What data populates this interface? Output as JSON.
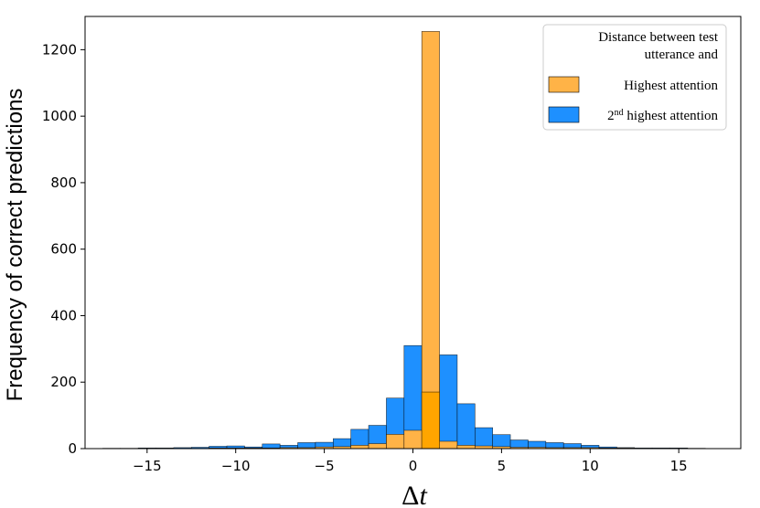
{
  "chart_data": {
    "type": "bar",
    "xlabel": "Δt",
    "ylabel": "Frequency of correct predictions",
    "xlim": [
      -18.5,
      18.5
    ],
    "ylim": [
      0,
      1300
    ],
    "xticks": [
      -15,
      -10,
      -5,
      0,
      5,
      10,
      15
    ],
    "yticks": [
      0,
      200,
      400,
      600,
      800,
      1000,
      1200
    ],
    "xtick_labels": [
      "−15",
      "−10",
      "−5",
      "0",
      "5",
      "10",
      "15"
    ],
    "ytick_labels": [
      "0",
      "200",
      "400",
      "600",
      "800",
      "1000",
      "1200"
    ],
    "bin_width": 1,
    "legend": {
      "placement": "top-right",
      "title": "Distance between test utterance and",
      "title_lines": [
        "Distance between test",
        "utterance and"
      ]
    },
    "series": [
      {
        "name": "2nd highest attention",
        "name_prefix": "2",
        "name_sup": "nd",
        "name_rest": " highest attention",
        "color": "#1E90FF",
        "draw_order": 1,
        "bin_centers": [
          -17,
          -16,
          -15,
          -14,
          -13,
          -12,
          -11,
          -10,
          -9,
          -8,
          -7,
          -6,
          -5,
          -4,
          -3,
          -2,
          -1,
          0,
          1,
          2,
          3,
          4,
          5,
          6,
          7,
          8,
          9,
          10,
          11,
          12,
          13,
          14,
          15,
          16
        ],
        "values": [
          1,
          1,
          2,
          2,
          3,
          4,
          7,
          8,
          5,
          14,
          10,
          18,
          19,
          30,
          58,
          70,
          152,
          310,
          170,
          282,
          135,
          63,
          42,
          26,
          22,
          18,
          15,
          10,
          5,
          3,
          2,
          2,
          2,
          1
        ]
      },
      {
        "name": "Highest attention",
        "color": "#FFB347",
        "draw_order": 2,
        "bin_centers": [
          -17,
          -16,
          -15,
          -14,
          -13,
          -12,
          -11,
          -10,
          -9,
          -8,
          -7,
          -6,
          -5,
          -4,
          -3,
          -2,
          -1,
          0,
          1,
          2,
          3,
          4,
          5,
          6,
          7,
          8,
          9,
          10,
          11,
          12,
          13,
          14,
          15,
          16
        ],
        "values": [
          0,
          0,
          1,
          1,
          1,
          1,
          2,
          2,
          2,
          2,
          3,
          3,
          5,
          6,
          10,
          15,
          43,
          55,
          1255,
          22,
          10,
          8,
          6,
          4,
          4,
          3,
          3,
          3,
          2,
          2,
          1,
          1,
          1,
          0
        ]
      }
    ],
    "overlap_color": "#FFA500"
  }
}
